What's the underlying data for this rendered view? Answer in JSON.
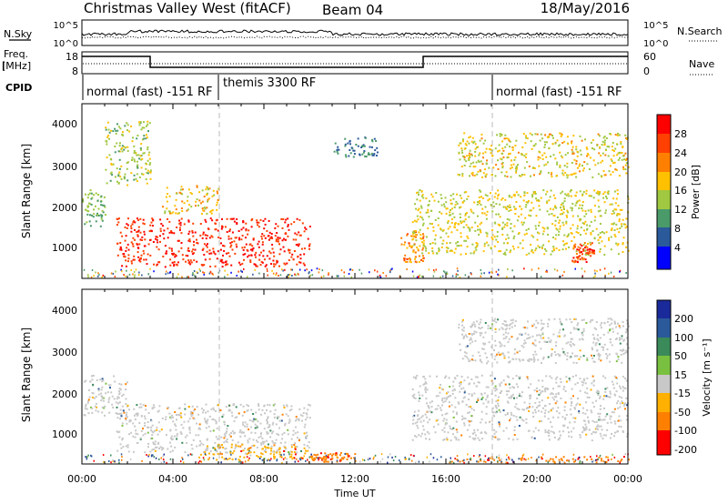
{
  "header": {
    "title": "Christmas Valley West (fitACF)",
    "beam": "Beam 04",
    "date": "18/May/2016"
  },
  "panels": {
    "nsky": {
      "label": "N.Sky",
      "ticks": [
        "10^5",
        "10^0"
      ],
      "right_label": "N.Search",
      "right_ticks": [
        "10^5",
        "10^0"
      ]
    },
    "freq": {
      "label_line1": "Freq.",
      "label_line2": "[MHz]",
      "ticks": [
        "18",
        "8"
      ],
      "right_label": "Nave",
      "right_ticks": [
        "60",
        "0"
      ]
    },
    "cpid": {
      "label": "CPID",
      "segments": [
        {
          "text": "normal (fast) -151 RF"
        },
        {
          "text": "themis 3300 RF"
        },
        {
          "text": "normal (fast) -151 RF"
        }
      ]
    }
  },
  "colorbars": {
    "power": {
      "label": "Power [dB]",
      "ticks": [
        "28",
        "24",
        "20",
        "16",
        "12",
        "8",
        "4"
      ]
    },
    "velocity": {
      "label": "Velocity [m s⁻¹]",
      "ticks": [
        "200",
        "100",
        "50",
        "15",
        "-15",
        "-50",
        "-100",
        "-200"
      ]
    }
  },
  "chart_data": [
    {
      "type": "heatmap",
      "title": "",
      "xlabel": "",
      "ylabel": "Slant Range [km]",
      "ylim": [
        200,
        4500
      ],
      "yticks": [
        "4000",
        "3000",
        "2000",
        "1000"
      ],
      "xlim": [
        "00:00",
        "24:00"
      ],
      "value_label": "Power [dB]",
      "value_range": [
        0,
        30
      ],
      "grid": false,
      "features": [
        {
          "t_start": "00:00",
          "t_end": "01:00",
          "range_start": 1500,
          "range_end": 2400,
          "power": 12
        },
        {
          "t_start": "01:00",
          "t_end": "03:00",
          "range_start": 2500,
          "range_end": 4100,
          "power": 14
        },
        {
          "t_start": "01:30",
          "t_end": "10:00",
          "range_start": 500,
          "range_end": 1700,
          "power": 28
        },
        {
          "t_start": "03:30",
          "t_end": "06:00",
          "range_start": 1800,
          "range_end": 2500,
          "power": 18
        },
        {
          "t_start": "11:00",
          "t_end": "13:00",
          "range_start": 3200,
          "range_end": 3700,
          "power": 8
        },
        {
          "t_start": "14:00",
          "t_end": "15:00",
          "range_start": 600,
          "range_end": 1400,
          "power": 22
        },
        {
          "t_start": "14:30",
          "t_end": "24:00",
          "range_start": 800,
          "range_end": 2400,
          "power": 16
        },
        {
          "t_start": "16:30",
          "t_end": "24:00",
          "range_start": 2700,
          "range_end": 3800,
          "power": 17
        },
        {
          "t_start": "21:30",
          "t_end": "22:30",
          "range_start": 600,
          "range_end": 1100,
          "power": 26
        }
      ]
    },
    {
      "type": "heatmap",
      "title": "",
      "xlabel": "Time UT",
      "ylabel": "Slant Range [km]",
      "ylim": [
        200,
        4500
      ],
      "yticks": [
        "4000",
        "3000",
        "2000",
        "1000"
      ],
      "xlim": [
        "00:00",
        "24:00"
      ],
      "xticks": [
        "00:00",
        "04:00",
        "08:00",
        "12:00",
        "16:00",
        "20:00",
        "00:00"
      ],
      "value_label": "Velocity [m s⁻¹]",
      "value_range": [
        -200,
        200
      ],
      "grid": false,
      "features": [
        {
          "t_start": "00:00",
          "t_end": "02:00",
          "range_start": 1400,
          "range_end": 2400,
          "velocity": 0
        },
        {
          "t_start": "01:30",
          "t_end": "10:00",
          "range_start": 500,
          "range_end": 1700,
          "velocity": 0
        },
        {
          "t_start": "05:00",
          "t_end": "10:00",
          "range_start": 300,
          "range_end": 700,
          "velocity": -40
        },
        {
          "t_start": "10:00",
          "t_end": "12:00",
          "range_start": 250,
          "range_end": 500,
          "velocity": -60
        },
        {
          "t_start": "14:30",
          "t_end": "24:00",
          "range_start": 800,
          "range_end": 2400,
          "velocity": 0
        },
        {
          "t_start": "16:30",
          "t_end": "24:00",
          "range_start": 2700,
          "range_end": 3800,
          "velocity": 0
        },
        {
          "t_start": "16:00",
          "t_end": "24:00",
          "range_start": 250,
          "range_end": 400,
          "velocity": -60
        }
      ]
    }
  ]
}
